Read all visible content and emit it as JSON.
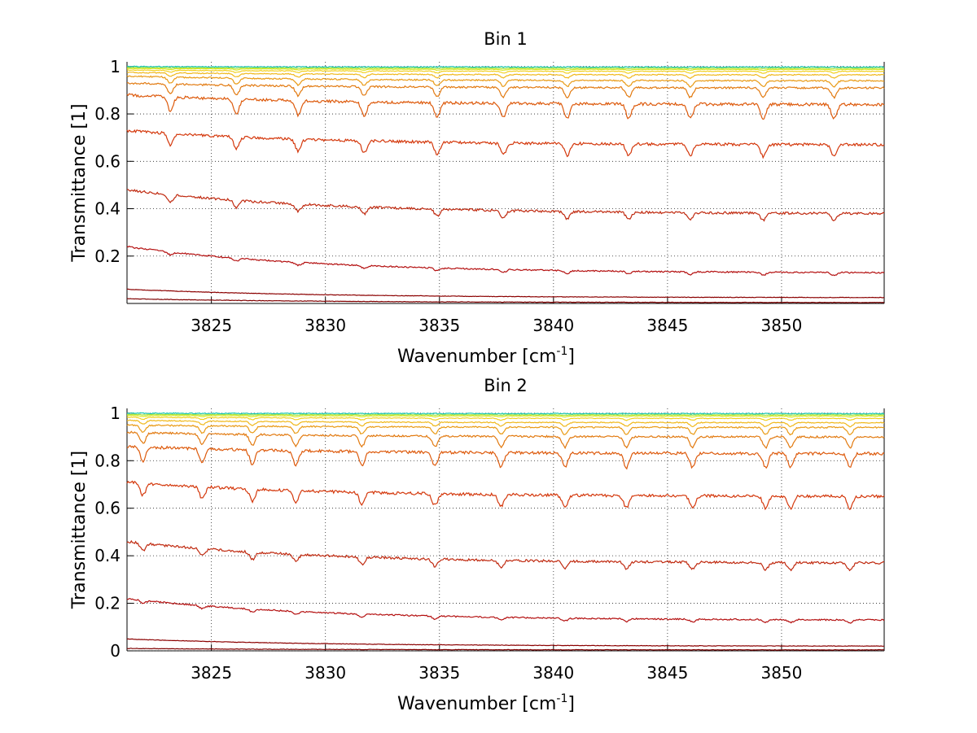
{
  "chart_data": [
    {
      "type": "line",
      "title": "Bin 1",
      "xlabel": "Wavenumber [cm",
      "xlabel_sup": "-1",
      "xlabel_tail": "]",
      "ylabel": "Transmittance [1]",
      "xlim": [
        3821.3,
        3854.5
      ],
      "ylim": [
        0,
        1.02
      ],
      "grid": true,
      "xticks": [
        3825,
        3830,
        3835,
        3840,
        3845,
        3850
      ],
      "xtick_labels": [
        "3825",
        "3830",
        "3835",
        "3840",
        "3845",
        "3850"
      ],
      "yticks": [
        0.2,
        0.4,
        0.6,
        0.8,
        1
      ],
      "ytick_labels": [
        "0.2",
        "0.4",
        "0.6",
        "0.8",
        "1"
      ],
      "line_dips": [
        3823.2,
        3826.1,
        3828.8,
        3831.7,
        3834.9,
        3837.8,
        3840.6,
        3843.3,
        3846.0,
        3849.2,
        3852.3
      ],
      "series": [
        {
          "color": "#800000",
          "start": 0.02,
          "end": 0.004,
          "noise": 0.001,
          "dip": 0.0
        },
        {
          "color": "#8b0000",
          "start": 0.06,
          "end": 0.025,
          "noise": 0.001,
          "dip": 0.0
        },
        {
          "color": "#b41010",
          "start": 0.24,
          "end": 0.13,
          "noise": 0.003,
          "dip": 0.012
        },
        {
          "color": "#c02a10",
          "start": 0.48,
          "end": 0.38,
          "noise": 0.005,
          "dip": 0.03
        },
        {
          "color": "#d4380c",
          "start": 0.73,
          "end": 0.67,
          "noise": 0.006,
          "dip": 0.05
        },
        {
          "color": "#dd5a0c",
          "start": 0.88,
          "end": 0.84,
          "noise": 0.006,
          "dip": 0.06
        },
        {
          "color": "#e27a10",
          "start": 0.93,
          "end": 0.91,
          "noise": 0.004,
          "dip": 0.04
        },
        {
          "color": "#e99a14",
          "start": 0.96,
          "end": 0.94,
          "noise": 0.003,
          "dip": 0.025
        },
        {
          "color": "#f0b81a",
          "start": 0.975,
          "end": 0.965,
          "noise": 0.002,
          "dip": 0.014
        },
        {
          "color": "#f2d020",
          "start": 0.985,
          "end": 0.98,
          "noise": 0.0015,
          "dip": 0.008
        },
        {
          "color": "#d8e820",
          "start": 0.992,
          "end": 0.988,
          "noise": 0.001,
          "dip": 0.004
        },
        {
          "color": "#a8e43c",
          "start": 0.996,
          "end": 0.993,
          "noise": 0.001,
          "dip": 0.002
        },
        {
          "color": "#1ec8b4",
          "start": 1.0,
          "end": 0.998,
          "noise": 0.002,
          "dip": 0.0
        }
      ]
    },
    {
      "type": "line",
      "title": "Bin 2",
      "xlabel": "Wavenumber [cm",
      "xlabel_sup": "-1",
      "xlabel_tail": "]",
      "ylabel": "Transmittance [1]",
      "xlim": [
        3821.3,
        3854.5
      ],
      "ylim": [
        0,
        1.02
      ],
      "grid": true,
      "xticks": [
        3825,
        3830,
        3835,
        3840,
        3845,
        3850
      ],
      "xtick_labels": [
        "3825",
        "3830",
        "3835",
        "3840",
        "3845",
        "3850"
      ],
      "yticks": [
        0,
        0.2,
        0.4,
        0.6,
        0.8,
        1
      ],
      "ytick_labels": [
        "0",
        "0.2",
        "0.4",
        "0.6",
        "0.8",
        "1"
      ],
      "line_dips": [
        3822.0,
        3824.6,
        3826.8,
        3828.7,
        3831.6,
        3834.8,
        3837.7,
        3840.5,
        3843.2,
        3846.1,
        3849.3,
        3850.4,
        3853.0
      ],
      "series": [
        {
          "color": "#800000",
          "start": 0.01,
          "end": 0.004,
          "noise": 0.001,
          "dip": 0.0
        },
        {
          "color": "#8b0000",
          "start": 0.05,
          "end": 0.02,
          "noise": 0.001,
          "dip": 0.0
        },
        {
          "color": "#b41010",
          "start": 0.22,
          "end": 0.13,
          "noise": 0.003,
          "dip": 0.012
        },
        {
          "color": "#c02a10",
          "start": 0.46,
          "end": 0.37,
          "noise": 0.005,
          "dip": 0.03
        },
        {
          "color": "#d4380c",
          "start": 0.71,
          "end": 0.65,
          "noise": 0.006,
          "dip": 0.05
        },
        {
          "color": "#dd5a0c",
          "start": 0.86,
          "end": 0.83,
          "noise": 0.006,
          "dip": 0.06
        },
        {
          "color": "#e27a10",
          "start": 0.92,
          "end": 0.9,
          "noise": 0.004,
          "dip": 0.045
        },
        {
          "color": "#e99a14",
          "start": 0.95,
          "end": 0.94,
          "noise": 0.003,
          "dip": 0.03
        },
        {
          "color": "#f0b81a",
          "start": 0.97,
          "end": 0.96,
          "noise": 0.002,
          "dip": 0.016
        },
        {
          "color": "#f2d020",
          "start": 0.983,
          "end": 0.978,
          "noise": 0.0015,
          "dip": 0.008
        },
        {
          "color": "#d8e820",
          "start": 0.99,
          "end": 0.988,
          "noise": 0.001,
          "dip": 0.004
        },
        {
          "color": "#a8e43c",
          "start": 0.995,
          "end": 0.993,
          "noise": 0.001,
          "dip": 0.002
        },
        {
          "color": "#1ec8b4",
          "start": 1.0,
          "end": 0.998,
          "noise": 0.002,
          "dip": 0.0
        }
      ]
    }
  ]
}
